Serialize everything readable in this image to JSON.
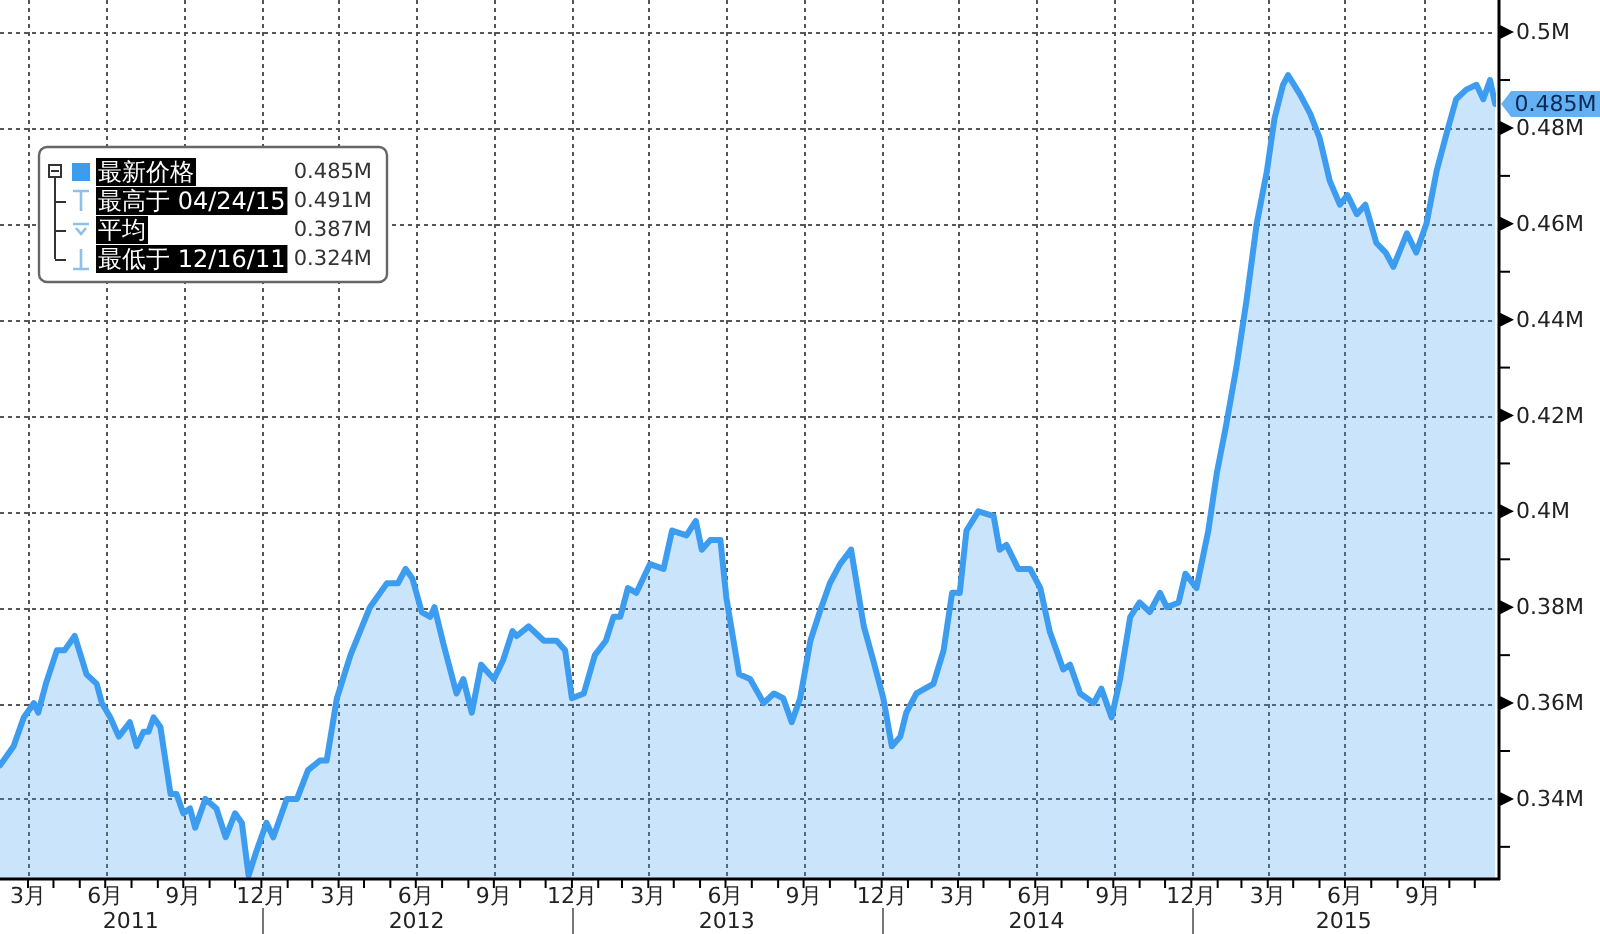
{
  "chart_data": {
    "type": "area",
    "x": [
      "2011-02-26",
      "2011-03-14",
      "2011-03-26",
      "2011-04-07",
      "2011-04-12",
      "2011-04-21",
      "2011-05-04",
      "2011-05-13",
      "2011-05-25",
      "2011-06-08",
      "2011-06-20",
      "2011-06-26",
      "2011-07-06",
      "2011-07-16",
      "2011-07-29",
      "2011-08-06",
      "2011-08-14",
      "2011-08-20",
      "2011-08-26",
      "2011-09-03",
      "2011-09-15",
      "2011-09-22",
      "2011-09-30",
      "2011-10-08",
      "2011-10-14",
      "2011-10-26",
      "2011-11-08",
      "2011-11-19",
      "2011-11-30",
      "2011-12-08",
      "2011-12-16",
      "2011-12-25",
      "2012-01-06",
      "2012-01-14",
      "2012-01-30",
      "2012-02-11",
      "2012-02-24",
      "2012-03-09",
      "2012-03-17",
      "2012-03-29",
      "2012-04-14",
      "2012-05-07",
      "2012-05-27",
      "2012-06-09",
      "2012-06-18",
      "2012-06-26",
      "2012-07-07",
      "2012-07-17",
      "2012-07-22",
      "2012-08-02",
      "2012-08-17",
      "2012-08-25",
      "2012-09-04",
      "2012-09-15",
      "2012-09-30",
      "2012-10-11",
      "2012-10-22",
      "2012-10-27",
      "2012-11-10",
      "2012-11-28",
      "2012-12-13",
      "2012-12-23",
      "2012-12-31",
      "2013-01-14",
      "2013-01-27",
      "2013-02-09",
      "2013-02-18",
      "2013-02-26",
      "2013-03-07",
      "2013-03-17",
      "2013-04-02",
      "2013-04-18",
      "2013-04-28",
      "2013-05-15",
      "2013-05-26",
      "2013-06-02",
      "2013-06-12",
      "2013-06-24",
      "2013-07-01",
      "2013-07-16",
      "2013-07-29",
      "2013-08-14",
      "2013-08-26",
      "2013-09-06",
      "2013-09-16",
      "2013-09-26",
      "2013-10-08",
      "2013-10-19",
      "2013-10-31",
      "2013-11-12",
      "2013-11-25",
      "2013-12-10",
      "2013-12-21",
      "2014-01-02",
      "2014-01-12",
      "2014-01-22",
      "2014-01-29",
      "2014-02-10",
      "2014-03-02",
      "2014-03-14",
      "2014-03-24",
      "2014-04-02",
      "2014-04-10",
      "2014-04-24",
      "2014-05-12",
      "2014-05-19",
      "2014-05-27",
      "2014-06-10",
      "2014-06-24",
      "2014-07-06",
      "2014-07-17",
      "2014-08-02",
      "2014-08-10",
      "2014-08-22",
      "2014-09-07",
      "2014-09-16",
      "2014-09-28",
      "2014-10-08",
      "2014-10-20",
      "2014-10-31",
      "2014-11-12",
      "2014-11-24",
      "2014-12-02",
      "2014-12-16",
      "2014-12-24",
      "2015-01-06",
      "2015-01-20",
      "2015-01-30",
      "2015-02-10",
      "2015-02-22",
      "2015-03-06",
      "2015-03-18",
      "2015-03-30",
      "2015-04-08",
      "2015-04-18",
      "2015-04-24",
      "2015-05-08",
      "2015-05-20",
      "2015-05-31",
      "2015-06-12",
      "2015-06-24",
      "2015-07-03",
      "2015-07-14",
      "2015-07-24",
      "2015-08-06",
      "2015-08-17",
      "2015-08-26",
      "2015-09-11",
      "2015-09-22",
      "2015-10-04",
      "2015-10-16",
      "2015-10-28",
      "2015-11-08",
      "2015-11-20",
      "2015-12-02",
      "2015-12-10",
      "2015-12-18",
      "2015-12-24"
    ],
    "series": [
      {
        "name": "最新价格",
        "color": "#3c9cf0",
        "values": [
          0.347,
          0.351,
          0.357,
          0.36,
          0.358,
          0.364,
          0.371,
          0.371,
          0.374,
          0.366,
          0.364,
          0.36,
          0.357,
          0.353,
          0.356,
          0.351,
          0.354,
          0.354,
          0.357,
          0.355,
          0.341,
          0.341,
          0.337,
          0.338,
          0.334,
          0.34,
          0.338,
          0.332,
          0.337,
          0.335,
          0.324,
          0.329,
          0.335,
          0.332,
          0.34,
          0.34,
          0.346,
          0.348,
          0.348,
          0.361,
          0.37,
          0.38,
          0.385,
          0.385,
          0.388,
          0.386,
          0.379,
          0.378,
          0.38,
          0.372,
          0.362,
          0.365,
          0.358,
          0.368,
          0.365,
          0.369,
          0.375,
          0.374,
          0.376,
          0.373,
          0.373,
          0.371,
          0.361,
          0.362,
          0.37,
          0.373,
          0.378,
          0.378,
          0.384,
          0.383,
          0.389,
          0.388,
          0.396,
          0.395,
          0.398,
          0.392,
          0.394,
          0.394,
          0.382,
          0.366,
          0.365,
          0.36,
          0.362,
          0.361,
          0.356,
          0.361,
          0.373,
          0.379,
          0.385,
          0.389,
          0.392,
          0.376,
          0.369,
          0.361,
          0.351,
          0.353,
          0.358,
          0.362,
          0.364,
          0.371,
          0.383,
          0.383,
          0.396,
          0.4,
          0.399,
          0.392,
          0.393,
          0.388,
          0.388,
          0.384,
          0.375,
          0.367,
          0.368,
          0.362,
          0.36,
          0.363,
          0.357,
          0.365,
          0.378,
          0.381,
          0.379,
          0.383,
          0.38,
          0.381,
          0.387,
          0.384,
          0.396,
          0.408,
          0.418,
          0.43,
          0.444,
          0.46,
          0.471,
          0.482,
          0.489,
          0.491,
          0.487,
          0.483,
          0.478,
          0.469,
          0.464,
          0.466,
          0.462,
          0.464,
          0.456,
          0.454,
          0.451,
          0.458,
          0.454,
          0.46,
          0.471,
          0.479,
          0.486,
          0.488,
          0.489,
          0.486,
          0.49,
          0.485
        ]
      }
    ],
    "xlim": [
      "2011-02-26",
      "2015-12-25"
    ],
    "xticks": [
      {
        "value": "2011-03-31",
        "label": "3月"
      },
      {
        "value": "2011-04-30",
        "label": null
      },
      {
        "value": "2011-05-31",
        "label": null
      },
      {
        "value": "2011-06-30",
        "label": "6月"
      },
      {
        "value": "2011-07-31",
        "label": null
      },
      {
        "value": "2011-08-31",
        "label": null
      },
      {
        "value": "2011-09-30",
        "label": "9月"
      },
      {
        "value": "2011-10-31",
        "label": null
      },
      {
        "value": "2011-11-30",
        "label": null
      },
      {
        "value": "2011-12-31",
        "label": "12月"
      },
      {
        "value": "2012-01-31",
        "label": null
      },
      {
        "value": "2012-02-29",
        "label": null
      },
      {
        "value": "2012-03-31",
        "label": "3月"
      },
      {
        "value": "2012-04-30",
        "label": null
      },
      {
        "value": "2012-05-31",
        "label": null
      },
      {
        "value": "2012-06-30",
        "label": "6月"
      },
      {
        "value": "2012-07-31",
        "label": null
      },
      {
        "value": "2012-08-31",
        "label": null
      },
      {
        "value": "2012-09-30",
        "label": "9月"
      },
      {
        "value": "2012-10-31",
        "label": null
      },
      {
        "value": "2012-11-30",
        "label": null
      },
      {
        "value": "2012-12-31",
        "label": "12月"
      },
      {
        "value": "2013-01-31",
        "label": null
      },
      {
        "value": "2013-02-28",
        "label": null
      },
      {
        "value": "2013-03-31",
        "label": "3月"
      },
      {
        "value": "2013-04-30",
        "label": null
      },
      {
        "value": "2013-05-31",
        "label": null
      },
      {
        "value": "2013-06-30",
        "label": "6月"
      },
      {
        "value": "2013-07-31",
        "label": null
      },
      {
        "value": "2013-08-31",
        "label": null
      },
      {
        "value": "2013-09-30",
        "label": "9月"
      },
      {
        "value": "2013-10-31",
        "label": null
      },
      {
        "value": "2013-11-30",
        "label": null
      },
      {
        "value": "2013-12-31",
        "label": "12月"
      },
      {
        "value": "2014-01-31",
        "label": null
      },
      {
        "value": "2014-02-28",
        "label": null
      },
      {
        "value": "2014-03-31",
        "label": "3月"
      },
      {
        "value": "2014-04-30",
        "label": null
      },
      {
        "value": "2014-05-31",
        "label": null
      },
      {
        "value": "2014-06-30",
        "label": "6月"
      },
      {
        "value": "2014-07-31",
        "label": null
      },
      {
        "value": "2014-08-31",
        "label": null
      },
      {
        "value": "2014-09-30",
        "label": "9月"
      },
      {
        "value": "2014-10-31",
        "label": null
      },
      {
        "value": "2014-11-30",
        "label": null
      },
      {
        "value": "2014-12-31",
        "label": "12月"
      },
      {
        "value": "2015-01-31",
        "label": null
      },
      {
        "value": "2015-02-28",
        "label": null
      },
      {
        "value": "2015-03-31",
        "label": "3月"
      },
      {
        "value": "2015-04-30",
        "label": null
      },
      {
        "value": "2015-05-31",
        "label": null
      },
      {
        "value": "2015-06-30",
        "label": "6月"
      },
      {
        "value": "2015-07-31",
        "label": null
      },
      {
        "value": "2015-08-31",
        "label": null
      },
      {
        "value": "2015-09-30",
        "label": "9月"
      },
      {
        "value": "2015-10-31",
        "label": null
      },
      {
        "value": "2015-11-30",
        "label": null
      }
    ],
    "ylim": [
      0.3235,
      0.5067
    ],
    "yticks": [
      {
        "value": 0.33,
        "label": null
      },
      {
        "value": 0.34,
        "label": "0.34M"
      },
      {
        "value": 0.35,
        "label": null
      },
      {
        "value": 0.36,
        "label": "0.36M"
      },
      {
        "value": 0.37,
        "label": null
      },
      {
        "value": 0.38,
        "label": "0.38M"
      },
      {
        "value": 0.39,
        "label": null
      },
      {
        "value": 0.4,
        "label": "0.4M"
      },
      {
        "value": 0.41,
        "label": null
      },
      {
        "value": 0.42,
        "label": "0.42M"
      },
      {
        "value": 0.43,
        "label": null
      },
      {
        "value": 0.44,
        "label": "0.44M"
      },
      {
        "value": 0.45,
        "label": null
      },
      {
        "value": 0.46,
        "label": "0.46M"
      },
      {
        "value": 0.47,
        "label": null
      },
      {
        "value": 0.48,
        "label": "0.48M"
      },
      {
        "value": 0.49,
        "label": null
      },
      {
        "value": 0.5,
        "label": "0.5M"
      }
    ],
    "grid": true,
    "legend": "top left",
    "line_style": "solid",
    "annotations": [
      {
        "text": "0.485M",
        "x": "2015-12-24",
        "y": 0.485
      },
      "0.485M",
      "最高于 04/24/15",
      "0.491M",
      "平均",
      "0.387M",
      "最低于 12/16/11",
      "0.324M",
      "2011",
      "2012",
      "2013",
      "2014",
      "2015"
    ]
  }
}
